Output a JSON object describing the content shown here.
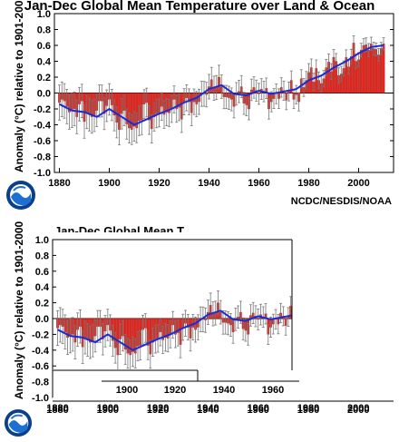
{
  "credit": "NCDC/NESDIS/NOAA",
  "chart_data": [
    {
      "type": "bar",
      "title": "Jan-Dec Global Mean Temperature over Land & Ocean",
      "xlabel": "",
      "ylabel": "Anomaly (°C) relative to 1901-2000",
      "xlim": [
        1878,
        2014
      ],
      "ylim": [
        -1.0,
        1.0
      ],
      "x_ticks": [
        1880,
        1900,
        1920,
        1940,
        1960,
        1980,
        2000
      ],
      "y_ticks": [
        "1.0",
        "0.8",
        "0.6",
        "0.4",
        "0.2",
        "0.0",
        "-0.2",
        "-0.4",
        "-0.6",
        "-0.8",
        "-1.0"
      ],
      "series": [
        {
          "x": [
            1880,
            1881,
            1882,
            1883,
            1884,
            1885,
            1886,
            1887,
            1888,
            1889,
            1890,
            1891,
            1892,
            1893,
            1894,
            1895,
            1896,
            1897,
            1898,
            1899,
            1900,
            1901,
            1902,
            1903,
            1904,
            1905,
            1906,
            1907,
            1908,
            1909,
            1910,
            1911,
            1912,
            1913,
            1914,
            1915,
            1916,
            1917,
            1918,
            1919,
            1920,
            1921,
            1922,
            1923,
            1924,
            1925,
            1926,
            1927,
            1928,
            1929,
            1930,
            1931,
            1932,
            1933,
            1934,
            1935,
            1936,
            1937,
            1938,
            1939,
            1940,
            1941,
            1942,
            1943,
            1944,
            1945,
            1946,
            1947,
            1948,
            1949,
            1950,
            1951,
            1952,
            1953,
            1954,
            1955,
            1956,
            1957,
            1958,
            1959,
            1960,
            1961,
            1962,
            1963,
            1964,
            1965,
            1966,
            1967,
            1968,
            1969,
            1970,
            1971,
            1972,
            1973,
            1974,
            1975,
            1976,
            1977,
            1978,
            1979,
            1980,
            1981,
            1982,
            1983,
            1984,
            1985,
            1986,
            1987,
            1988,
            1989,
            1990,
            1991,
            1992,
            1993,
            1994,
            1995,
            1996,
            1997,
            1998,
            1999,
            2000,
            2001,
            2002,
            2003,
            2004,
            2005,
            2006,
            2007,
            2008,
            2009,
            2010
          ],
          "values": [
            -0.12,
            -0.08,
            -0.1,
            -0.17,
            -0.24,
            -0.22,
            -0.2,
            -0.3,
            -0.14,
            -0.1,
            -0.36,
            -0.24,
            -0.27,
            -0.3,
            -0.28,
            -0.22,
            -0.1,
            -0.1,
            -0.26,
            -0.16,
            -0.08,
            -0.15,
            -0.28,
            -0.37,
            -0.46,
            -0.26,
            -0.22,
            -0.39,
            -0.44,
            -0.46,
            -0.42,
            -0.44,
            -0.35,
            -0.34,
            -0.14,
            -0.12,
            -0.34,
            -0.45,
            -0.3,
            -0.26,
            -0.25,
            -0.17,
            -0.27,
            -0.24,
            -0.25,
            -0.2,
            -0.08,
            -0.2,
            -0.18,
            -0.33,
            -0.11,
            -0.06,
            -0.11,
            -0.25,
            -0.11,
            -0.14,
            -0.11,
            -0.01,
            -0.01,
            -0.02,
            0.08,
            0.17,
            0.06,
            0.07,
            0.2,
            0.08,
            -0.05,
            -0.05,
            -0.06,
            -0.08,
            -0.17,
            -0.01,
            0.02,
            0.08,
            -0.13,
            -0.15,
            -0.2,
            0.04,
            0.07,
            0.03,
            -0.01,
            0.05,
            0.02,
            0.06,
            -0.2,
            -0.11,
            -0.07,
            -0.01,
            -0.07,
            0.07,
            0.03,
            -0.09,
            0.02,
            0.16,
            -0.08,
            -0.02,
            -0.11,
            0.18,
            0.07,
            0.16,
            0.26,
            0.32,
            0.14,
            0.31,
            0.16,
            0.12,
            0.18,
            0.32,
            0.39,
            0.27,
            0.45,
            0.4,
            0.22,
            0.24,
            0.31,
            0.45,
            0.33,
            0.46,
            0.63,
            0.4,
            0.42,
            0.54,
            0.6,
            0.61,
            0.54,
            0.62,
            0.56,
            0.55,
            0.48,
            0.56,
            0.62
          ]
        },
        {
          "name": "",
          "x": [
            1880,
            1885,
            1890,
            1895,
            1900,
            1905,
            1910,
            1915,
            1920,
            1925,
            1930,
            1935,
            1940,
            1945,
            1950,
            1955,
            1960,
            1965,
            1970,
            1975,
            1980,
            1985,
            1990,
            1995,
            2000,
            2005,
            2010
          ],
          "values": [
            -0.14,
            -0.22,
            -0.24,
            -0.3,
            -0.2,
            -0.3,
            -0.4,
            -0.33,
            -0.26,
            -0.2,
            -0.12,
            -0.06,
            0.05,
            0.1,
            -0.01,
            -0.03,
            0.03,
            -0.01,
            0.02,
            0.05,
            0.16,
            0.22,
            0.32,
            0.4,
            0.5,
            0.58,
            0.6
          ]
        }
      ]
    },
    {
      "type": "bar",
      "title": "Jan-Dec Global Mean T",
      "xlabel": "",
      "ylabel": "Anomaly (°C) relative to 1901-2000",
      "ylim": [
        -1.0,
        1.0
      ],
      "x_ticks": [
        1880,
        1900,
        1920,
        1940,
        1960,
        1980,
        2000
      ],
      "inset_x_ticks": [
        1900,
        1920,
        1940,
        1960
      ],
      "y_ticks": [
        "1.0",
        "0.8",
        "0.6",
        "0.4",
        "0.2",
        "0.0",
        "-0.2",
        "-0.4",
        "-0.6",
        "-0.8",
        "-1.0"
      ]
    }
  ]
}
